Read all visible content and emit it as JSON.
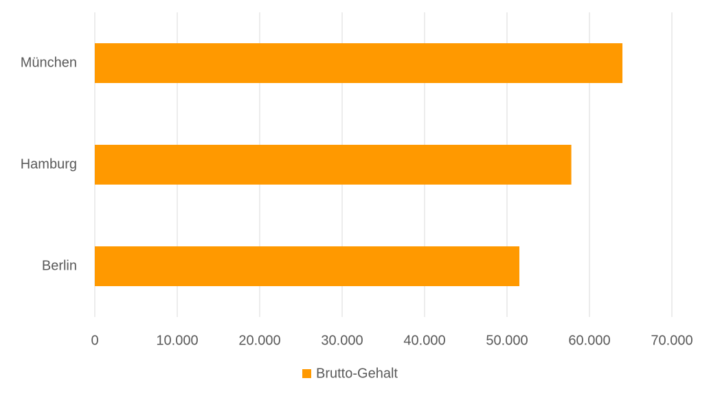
{
  "chart_data": {
    "type": "hbar",
    "categories": [
      "München",
      "Hamburg",
      "Berlin"
    ],
    "series": [
      {
        "name": "Brutto-Gehalt",
        "color": "#ff9900",
        "values": [
          64000,
          57800,
          51500
        ]
      }
    ],
    "xlim": [
      0,
      70000
    ],
    "xticks": [
      0,
      {
        "value": 10000,
        "label": "10.000"
      },
      {
        "value": 20000,
        "label": "20.000"
      },
      {
        "value": 30000,
        "label": "30.000"
      },
      {
        "value": 40000,
        "label": "40.000"
      },
      {
        "value": 50000,
        "label": "50.000"
      },
      {
        "value": 60000,
        "label": "60.000"
      },
      {
        "value": 70000,
        "label": "70.000"
      }
    ],
    "grid": true,
    "legend": "bottom"
  }
}
